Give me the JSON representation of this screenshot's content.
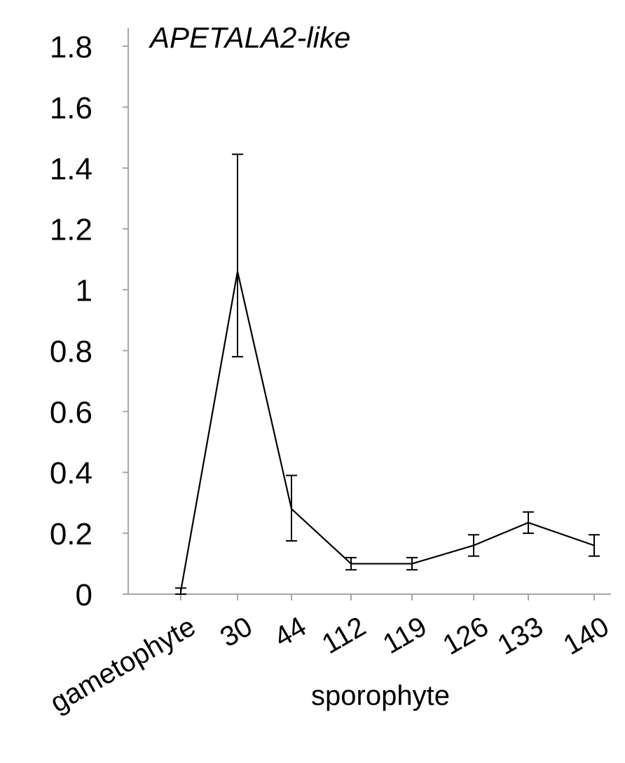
{
  "chart_data": {
    "type": "line",
    "title": "APETALA2-like",
    "xlabel": "sporophyte",
    "ylabel": "",
    "categories": [
      "gametophyte",
      "30",
      "44",
      "112",
      "119",
      "126",
      "133",
      "140"
    ],
    "series": [
      {
        "values": [
          0.01,
          1.06,
          0.28,
          0.1,
          0.1,
          0.16,
          0.235,
          0.16
        ],
        "error_low": [
          0.0,
          0.78,
          0.175,
          0.08,
          0.08,
          0.125,
          0.2,
          0.125
        ],
        "error_high": [
          0.02,
          1.445,
          0.39,
          0.12,
          0.12,
          0.195,
          0.27,
          0.195
        ]
      }
    ],
    "y_ticks": [
      "0",
      "0.2",
      "0.4",
      "0.6",
      "0.8",
      "1",
      "1.2",
      "1.4",
      "1.6",
      "1.8"
    ],
    "ylim": [
      0,
      1.8
    ],
    "grid": false,
    "legend": "none",
    "colors": {
      "line": "#000000",
      "axis": "#a6a6a6"
    }
  }
}
